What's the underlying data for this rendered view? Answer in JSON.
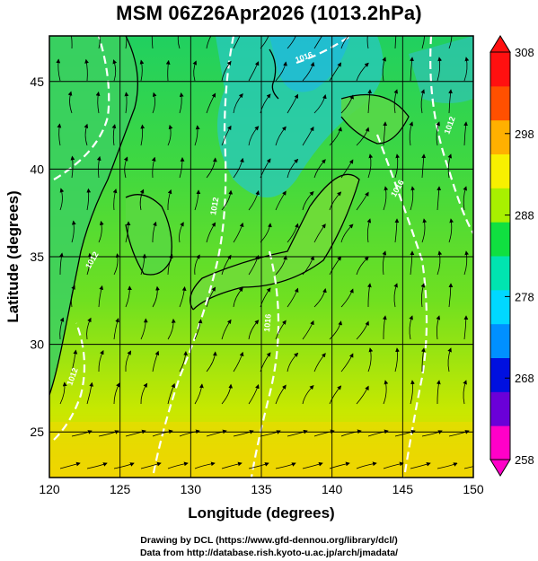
{
  "title": "MSM 06Z26Apr2026 (1013.2hPa)",
  "map": {
    "x_label": "Longitude (degrees)",
    "y_label": "Latitude  (degrees)",
    "lon_range": [
      120,
      150
    ],
    "lat_range": [
      22.4,
      47.6
    ],
    "lon_ticks": [
      120,
      125,
      130,
      135,
      140,
      145,
      150
    ],
    "lat_ticks": [
      25,
      30,
      35,
      40,
      45
    ],
    "gridlines": true,
    "isobar_labels": [
      "1012",
      "1012",
      "1016",
      "1016",
      "1012",
      "1012",
      "1016"
    ]
  },
  "colorbar": {
    "min": 258,
    "max": 308,
    "ticks": [
      308,
      298,
      288,
      278,
      268,
      258
    ],
    "colors": [
      "#ff00c8",
      "#6a00d8",
      "#0010e0",
      "#0090ff",
      "#00d8ff",
      "#00e4b0",
      "#10e040",
      "#a8f000",
      "#f8f000",
      "#ffb000",
      "#ff5000",
      "#ff1010"
    ]
  },
  "credits": {
    "line1": "Drawing by DCL (https://www.gfd-dennou.org/library/dcl/)",
    "line2": "Data from http://database.rish.kyoto-u.ac.jp/arch/jmadata/"
  }
}
